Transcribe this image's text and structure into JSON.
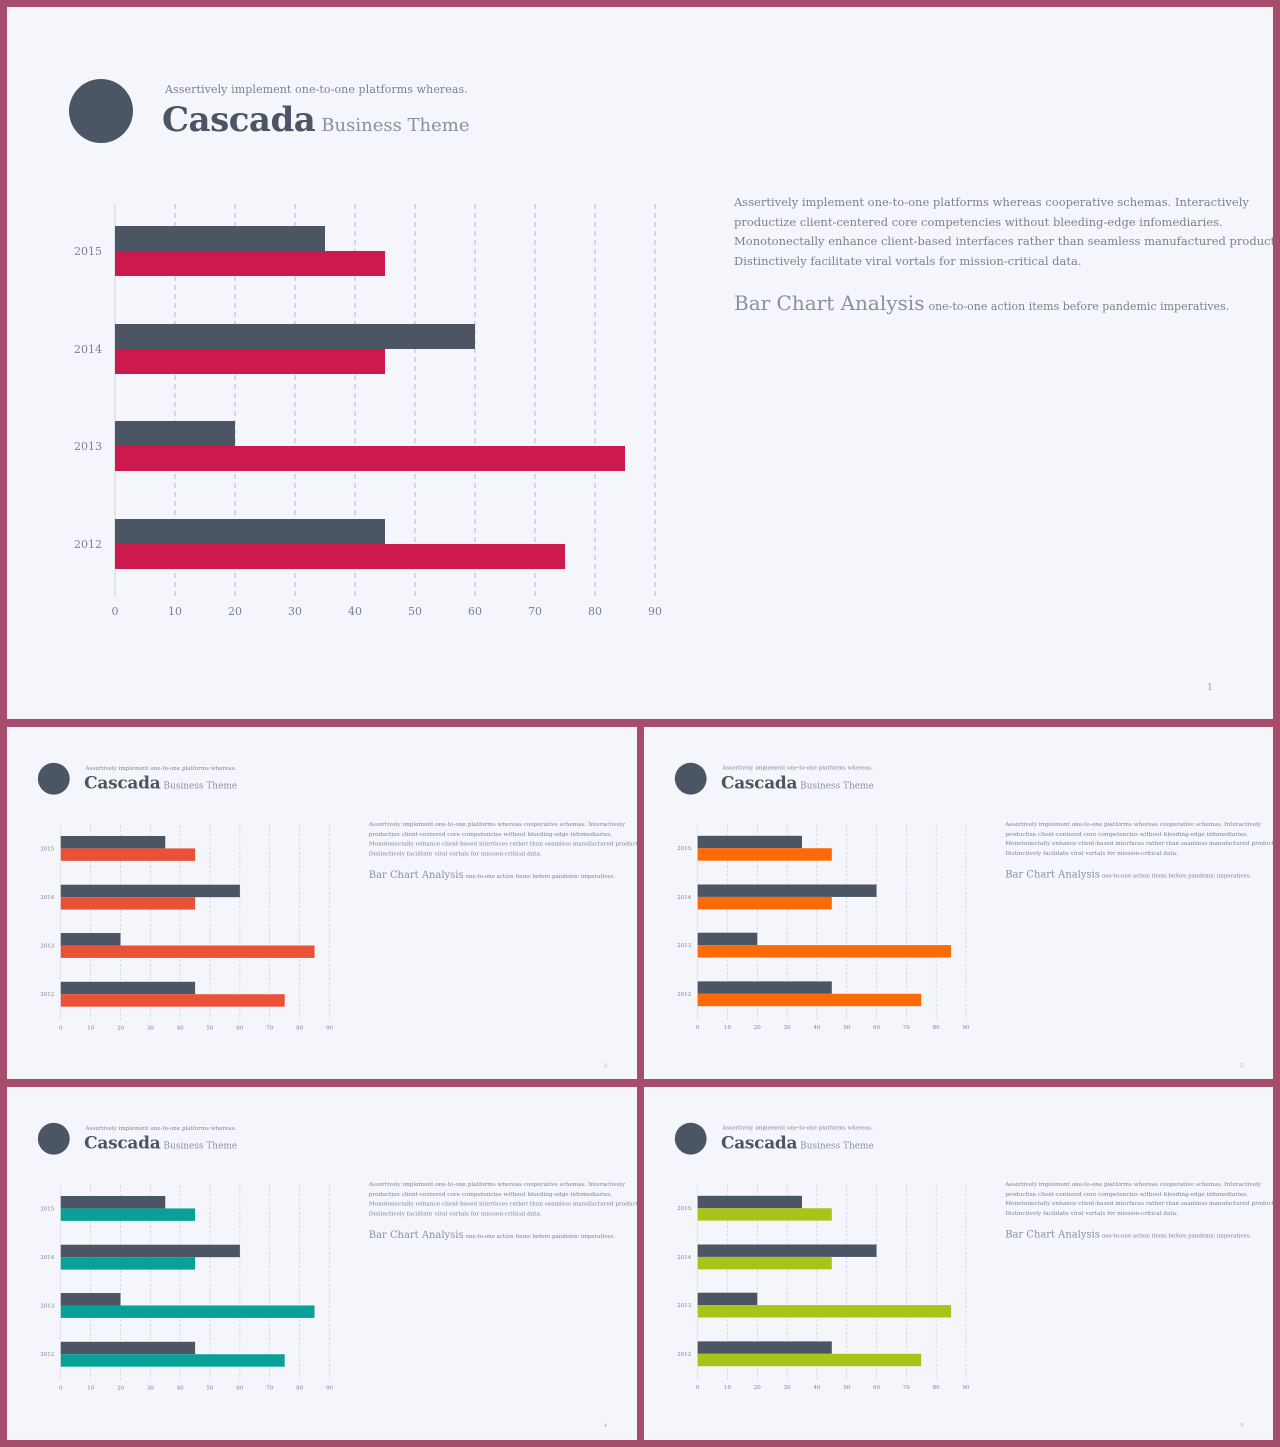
{
  "slides": [
    {
      "accent_color": "#cc1a4f",
      "page_number": "1"
    },
    {
      "accent_color": "#ea5237",
      "page_number": "2"
    },
    {
      "accent_color": "#fb6908",
      "page_number": "2"
    },
    {
      "accent_color": "#08a099",
      "page_number": "4"
    },
    {
      "accent_color": "#a8c419",
      "page_number": "5"
    }
  ],
  "header": {
    "kicker": "Assertively implement one-to-one platforms whereas.",
    "brand": "Cascada",
    "theme": "Business Theme"
  },
  "description": {
    "lines": [
      "Assertively implement one-to-one platforms whereas cooperative schemas. Interactively",
      "productize client-centered core competencies without bleeding-edge infomediaries.",
      "Monotonectally enhance client-based interfaces rather than seamless manufactured products.",
      "Distinctively facilitate viral vortals for mission-critical data."
    ]
  },
  "analysis": {
    "title": "Bar Chart Analysis",
    "subtitle": "one-to-one action items before pandemic imperatives."
  },
  "colors": {
    "frame": "#a74d6c",
    "background": "#f5f6fb",
    "dark_bar": "#4b5563",
    "grid": "#b5b9c0",
    "text": "#7b828c"
  },
  "chart_data": {
    "type": "bar",
    "orientation": "horizontal",
    "categories": [
      "2015",
      "2014",
      "2013",
      "2012"
    ],
    "series": [
      {
        "color_role": "dark",
        "values": [
          35,
          60,
          20,
          45
        ]
      },
      {
        "color_role": "accent",
        "values": [
          45,
          45,
          85,
          75
        ]
      }
    ],
    "xticks": [
      "0",
      "10",
      "20",
      "30",
      "40",
      "50",
      "60",
      "70",
      "80",
      "90"
    ],
    "xlim": [
      0,
      90
    ],
    "grid": true,
    "title": "",
    "xlabel": "",
    "ylabel": ""
  }
}
